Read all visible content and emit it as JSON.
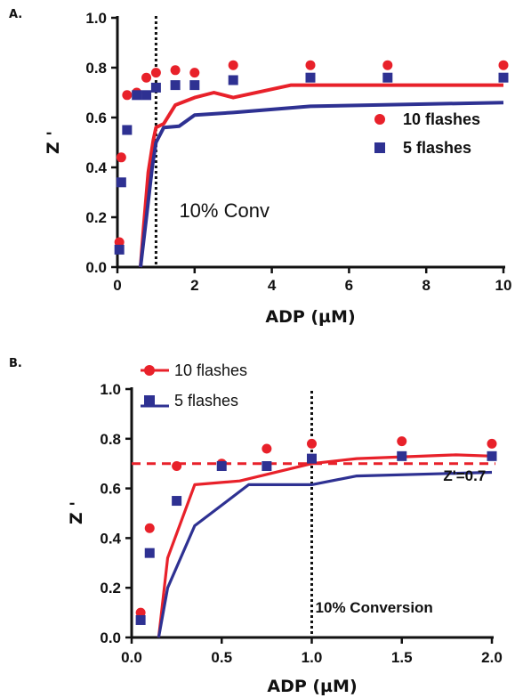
{
  "chart_data": [
    {
      "panel": "A.",
      "type": "scatter",
      "xlabel": "ADP (µM)",
      "ylabel": "Z '",
      "xlim": [
        0,
        10
      ],
      "ylim": [
        0,
        1.0
      ],
      "xticks": [
        "0",
        "2",
        "4",
        "6",
        "8",
        "10"
      ],
      "yticks": [
        "0.0",
        "0.2",
        "0.4",
        "0.6",
        "0.8",
        "1.0"
      ],
      "legend_position": "right",
      "vline": {
        "x": 1.0,
        "style": "dotted",
        "color": "#111111"
      },
      "annotations": [
        {
          "text": "10% Conv",
          "x": 1.6,
          "y": 0.2
        }
      ],
      "series": [
        {
          "name": "10 flashes",
          "color": "#e8212a",
          "marker": "circle",
          "points": [
            [
              0.05,
              0.1
            ],
            [
              0.1,
              0.44
            ],
            [
              0.25,
              0.69
            ],
            [
              0.5,
              0.7
            ],
            [
              0.75,
              0.76
            ],
            [
              1.0,
              0.78
            ],
            [
              1.5,
              0.79
            ],
            [
              2.0,
              0.78
            ],
            [
              3.0,
              0.81
            ],
            [
              5.0,
              0.81
            ],
            [
              7.0,
              0.81
            ],
            [
              10.0,
              0.81
            ]
          ],
          "fit": [
            [
              0.6,
              0.0
            ],
            [
              0.68,
              0.16
            ],
            [
              0.8,
              0.38
            ],
            [
              0.93,
              0.51
            ],
            [
              1.0,
              0.56
            ],
            [
              1.2,
              0.575
            ],
            [
              1.5,
              0.65
            ],
            [
              2.0,
              0.68
            ],
            [
              2.5,
              0.7
            ],
            [
              3.0,
              0.68
            ],
            [
              4.5,
              0.73
            ],
            [
              10.0,
              0.73
            ]
          ]
        },
        {
          "name": "5 flashes",
          "color": "#2e3192",
          "marker": "square",
          "points": [
            [
              0.05,
              0.07
            ],
            [
              0.1,
              0.34
            ],
            [
              0.25,
              0.55
            ],
            [
              0.5,
              0.69
            ],
            [
              0.75,
              0.69
            ],
            [
              1.0,
              0.72
            ],
            [
              1.5,
              0.73
            ],
            [
              2.0,
              0.73
            ],
            [
              3.0,
              0.75
            ],
            [
              5.0,
              0.76
            ],
            [
              7.0,
              0.76
            ],
            [
              10.0,
              0.76
            ]
          ],
          "fit": [
            [
              0.6,
              0.0
            ],
            [
              0.75,
              0.2
            ],
            [
              0.9,
              0.4
            ],
            [
              1.0,
              0.5
            ],
            [
              1.2,
              0.56
            ],
            [
              1.6,
              0.565
            ],
            [
              2.0,
              0.61
            ],
            [
              3.0,
              0.62
            ],
            [
              5.0,
              0.645
            ],
            [
              10.0,
              0.66
            ]
          ]
        }
      ]
    },
    {
      "panel": "B.",
      "type": "scatter",
      "xlabel": "ADP (µM)",
      "ylabel": "Z '",
      "xlim": [
        0,
        2.0
      ],
      "ylim": [
        0,
        1.0
      ],
      "xticks": [
        "0.0",
        "0.5",
        "1.0",
        "1.5",
        "2.0"
      ],
      "yticks": [
        "0.0",
        "0.2",
        "0.4",
        "0.6",
        "0.8",
        "1.0"
      ],
      "legend_position": "top-left",
      "vline": {
        "x": 1.0,
        "style": "dotted",
        "color": "#111111"
      },
      "hline": {
        "y": 0.7,
        "style": "dashed",
        "color": "#e8212a"
      },
      "annotations": [
        {
          "text": "Z'=0.7",
          "x": 1.73,
          "y": 0.63
        },
        {
          "text": "10% Conversion",
          "x": 1.02,
          "y": 0.1
        }
      ],
      "series": [
        {
          "name": "10 flashes",
          "color": "#e8212a",
          "marker": "circle",
          "points": [
            [
              0.05,
              0.1
            ],
            [
              0.1,
              0.44
            ],
            [
              0.25,
              0.69
            ],
            [
              0.5,
              0.7
            ],
            [
              0.75,
              0.76
            ],
            [
              1.0,
              0.78
            ],
            [
              1.5,
              0.79
            ],
            [
              2.0,
              0.78
            ]
          ],
          "fit": [
            [
              0.15,
              0.0
            ],
            [
              0.2,
              0.32
            ],
            [
              0.35,
              0.615
            ],
            [
              0.6,
              0.63
            ],
            [
              1.0,
              0.7
            ],
            [
              1.25,
              0.72
            ],
            [
              1.8,
              0.735
            ],
            [
              2.0,
              0.73
            ]
          ]
        },
        {
          "name": "5 flashes",
          "color": "#2e3192",
          "marker": "square",
          "points": [
            [
              0.05,
              0.07
            ],
            [
              0.1,
              0.34
            ],
            [
              0.25,
              0.55
            ],
            [
              0.5,
              0.69
            ],
            [
              0.75,
              0.69
            ],
            [
              1.0,
              0.72
            ],
            [
              1.5,
              0.73
            ],
            [
              2.0,
              0.73
            ]
          ],
          "fit": [
            [
              0.15,
              0.0
            ],
            [
              0.2,
              0.2
            ],
            [
              0.35,
              0.45
            ],
            [
              0.65,
              0.615
            ],
            [
              1.0,
              0.615
            ],
            [
              1.25,
              0.65
            ],
            [
              2.0,
              0.665
            ]
          ]
        }
      ]
    }
  ]
}
